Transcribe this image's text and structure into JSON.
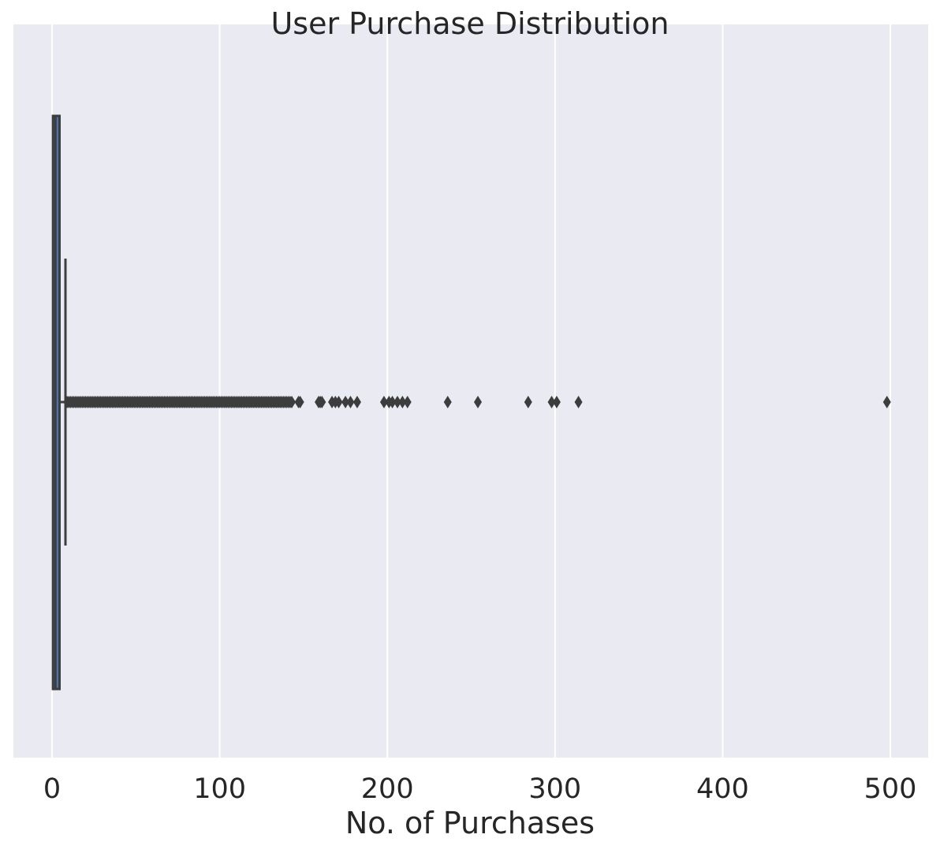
{
  "chart_data": {
    "type": "boxplot",
    "title": "User Purchase Distribution",
    "xlabel": "No. of Purchases",
    "ylabel": "",
    "xlim": [
      -23,
      522
    ],
    "xticks": [
      0,
      100,
      200,
      300,
      400,
      500
    ],
    "xtick_labels": [
      "0",
      "100",
      "200",
      "300",
      "400",
      "500"
    ],
    "grid": true,
    "orientation": "horizontal",
    "box": {
      "whisker_low": 1,
      "q1": 1,
      "median": 2,
      "q3": 4,
      "whisker_high": 8
    },
    "outliers_range": [
      9,
      143
    ],
    "outliers": [
      147,
      148,
      159,
      160,
      161,
      167,
      169,
      171,
      175,
      178,
      182,
      198,
      201,
      203,
      206,
      209,
      212,
      236,
      254,
      284,
      298,
      301,
      314,
      498
    ],
    "colors": {
      "background": "#eaeaf2",
      "grid": "#ffffff",
      "box_fill": "#4c72b0",
      "lines": "#3d3d3d"
    }
  }
}
